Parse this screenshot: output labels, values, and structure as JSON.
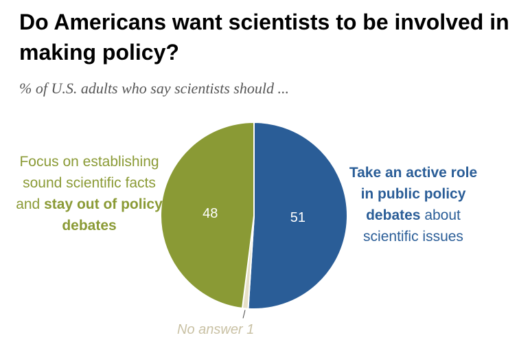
{
  "title": "Do Americans want scientists to be involved in making policy?",
  "subtitle": "% of U.S. adults who say scientists should ...",
  "labels": {
    "left_normal": "Focus on establishing sound scientific facts and",
    "left_bold": "stay out of policy debates",
    "right_bold": "Take an active role in public policy debates",
    "right_normal": "about scientific issues",
    "no_answer": "No answer 1"
  },
  "colors": {
    "stay_out": "#8a9a35",
    "active_role": "#2a5d97",
    "no_answer": "#e6e0c8"
  },
  "chart_data": {
    "type": "pie",
    "title": "Do Americans want scientists to be involved in making policy?",
    "subtitle": "% of U.S. adults who say scientists should ...",
    "slices": [
      {
        "name": "Take an active role in public policy debates about scientific issues",
        "value": 51,
        "label": "51",
        "color": "#2a5d97"
      },
      {
        "name": "No answer",
        "value": 1,
        "label": "1",
        "color": "#e6e0c8"
      },
      {
        "name": "Focus on establishing sound scientific facts and stay out of policy debates",
        "value": 48,
        "label": "48",
        "color": "#8a9a35"
      }
    ]
  }
}
